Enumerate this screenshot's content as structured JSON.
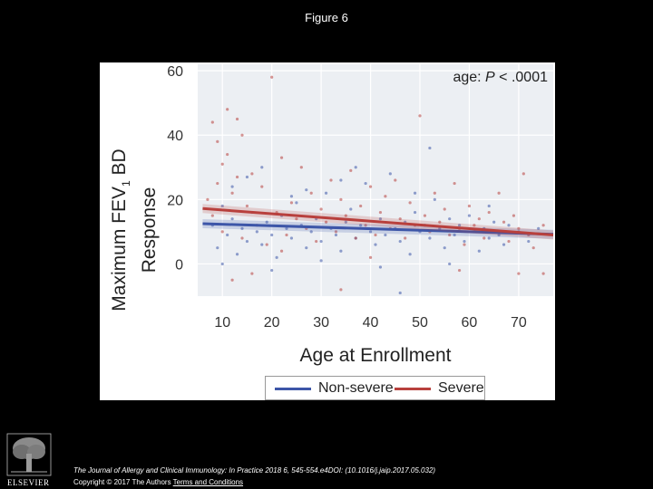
{
  "slide": {
    "title": "Figure 6",
    "citation": "The Journal of Allergy and Clinical Immunology: In Practice 2018 6, 545-554.e4DOI: (10.1016/j.jaip.2017.05.032)",
    "copyright_prefix": "Copyright © 2017 The Authors",
    "terms_link": "Terms and Conditions",
    "publisher_logo_text": "ELSEVIER"
  },
  "colors": {
    "non_severe": "#3d56a8",
    "severe": "#b8403d",
    "plot_background": "#eceff3"
  },
  "chart_data": {
    "type": "scatter",
    "annotation_prefix": "age: ",
    "annotation_p": "P",
    "annotation_suffix": " < .0001",
    "ylabel_line1": "Maximum FEV",
    "ylabel_sub": "1",
    "ylabel_line1_end": " BD",
    "ylabel_line2": "Response",
    "xlabel": "Age at Enrollment",
    "x_ticks": [
      "10",
      "20",
      "30",
      "40",
      "50",
      "60",
      "70"
    ],
    "y_ticks": [
      "0",
      "20",
      "40",
      "60"
    ],
    "xlim": [
      5,
      77
    ],
    "ylim": [
      -10,
      62
    ],
    "grid": true,
    "legend_position": "bottom",
    "series": [
      {
        "name": "Non-severe",
        "fit_line": {
          "x": [
            6,
            77
          ],
          "y": [
            12.5,
            9.2
          ]
        },
        "points": [
          [
            8,
            12
          ],
          [
            9,
            5
          ],
          [
            10,
            18
          ],
          [
            11,
            9
          ],
          [
            12,
            14
          ],
          [
            13,
            3
          ],
          [
            14,
            11
          ],
          [
            15,
            7
          ],
          [
            16,
            16
          ],
          [
            17,
            10
          ],
          [
            18,
            6
          ],
          [
            19,
            13
          ],
          [
            20,
            9
          ],
          [
            21,
            2
          ],
          [
            22,
            15
          ],
          [
            23,
            11
          ],
          [
            24,
            8
          ],
          [
            25,
            19
          ],
          [
            26,
            12
          ],
          [
            27,
            5
          ],
          [
            28,
            10
          ],
          [
            29,
            14
          ],
          [
            30,
            7
          ],
          [
            31,
            22
          ],
          [
            32,
            11
          ],
          [
            33,
            9
          ],
          [
            34,
            4
          ],
          [
            35,
            13
          ],
          [
            36,
            17
          ],
          [
            37,
            8
          ],
          [
            38,
            12
          ],
          [
            39,
            25
          ],
          [
            40,
            10
          ],
          [
            41,
            6
          ],
          [
            42,
            14
          ],
          [
            43,
            9
          ],
          [
            44,
            28
          ],
          [
            45,
            11
          ],
          [
            46,
            7
          ],
          [
            47,
            13
          ],
          [
            48,
            3
          ],
          [
            49,
            16
          ],
          [
            50,
            10
          ],
          [
            51,
            12
          ],
          [
            52,
            8
          ],
          [
            53,
            20
          ],
          [
            54,
            11
          ],
          [
            55,
            5
          ],
          [
            56,
            14
          ],
          [
            57,
            9
          ],
          [
            58,
            12
          ],
          [
            59,
            7
          ],
          [
            60,
            15
          ],
          [
            61,
            10
          ],
          [
            62,
            4
          ],
          [
            63,
            11
          ],
          [
            64,
            8
          ],
          [
            65,
            13
          ],
          [
            66,
            9
          ],
          [
            67,
            6
          ],
          [
            68,
            12
          ],
          [
            70,
            10
          ],
          [
            72,
            7
          ],
          [
            74,
            11
          ],
          [
            12,
            24
          ],
          [
            18,
            30
          ],
          [
            24,
            21
          ],
          [
            34,
            26
          ],
          [
            46,
            -9
          ],
          [
            52,
            36
          ],
          [
            10,
            0
          ],
          [
            20,
            -2
          ],
          [
            30,
            1
          ],
          [
            42,
            -1
          ],
          [
            56,
            0
          ],
          [
            64,
            18
          ],
          [
            37,
            30
          ],
          [
            27,
            23
          ],
          [
            15,
            27
          ],
          [
            49,
            22
          ]
        ]
      },
      {
        "name": "Severe",
        "fit_line": {
          "x": [
            6,
            77
          ],
          "y": [
            17.2,
            9.0
          ]
        },
        "points": [
          [
            7,
            20
          ],
          [
            8,
            15
          ],
          [
            9,
            38
          ],
          [
            10,
            10
          ],
          [
            11,
            48
          ],
          [
            12,
            22
          ],
          [
            13,
            45
          ],
          [
            14,
            8
          ],
          [
            15,
            18
          ],
          [
            16,
            28
          ],
          [
            17,
            12
          ],
          [
            18,
            24
          ],
          [
            19,
            6
          ],
          [
            20,
            58
          ],
          [
            21,
            16
          ],
          [
            22,
            33
          ],
          [
            23,
            9
          ],
          [
            24,
            19
          ],
          [
            25,
            14
          ],
          [
            26,
            30
          ],
          [
            27,
            11
          ],
          [
            28,
            22
          ],
          [
            29,
            7
          ],
          [
            30,
            17
          ],
          [
            31,
            13
          ],
          [
            32,
            26
          ],
          [
            33,
            10
          ],
          [
            34,
            20
          ],
          [
            35,
            15
          ],
          [
            36,
            29
          ],
          [
            37,
            8
          ],
          [
            38,
            18
          ],
          [
            39,
            12
          ],
          [
            40,
            24
          ],
          [
            41,
            9
          ],
          [
            42,
            16
          ],
          [
            43,
            21
          ],
          [
            44,
            11
          ],
          [
            45,
            26
          ],
          [
            46,
            14
          ],
          [
            47,
            8
          ],
          [
            48,
            19
          ],
          [
            49,
            12
          ],
          [
            50,
            46
          ],
          [
            51,
            15
          ],
          [
            52,
            10
          ],
          [
            53,
            22
          ],
          [
            54,
            13
          ],
          [
            55,
            17
          ],
          [
            56,
            9
          ],
          [
            57,
            25
          ],
          [
            58,
            11
          ],
          [
            59,
            6
          ],
          [
            60,
            18
          ],
          [
            61,
            12
          ],
          [
            62,
            14
          ],
          [
            63,
            8
          ],
          [
            64,
            16
          ],
          [
            65,
            10
          ],
          [
            66,
            22
          ],
          [
            67,
            13
          ],
          [
            68,
            7
          ],
          [
            69,
            15
          ],
          [
            70,
            11
          ],
          [
            71,
            28
          ],
          [
            72,
            9
          ],
          [
            73,
            5
          ],
          [
            75,
            12
          ],
          [
            8,
            44
          ],
          [
            10,
            31
          ],
          [
            12,
            -5
          ],
          [
            14,
            40
          ],
          [
            16,
            -3
          ],
          [
            9,
            25
          ],
          [
            11,
            34
          ],
          [
            13,
            27
          ],
          [
            70,
            -3
          ],
          [
            75,
            -3
          ],
          [
            58,
            -2
          ],
          [
            40,
            2
          ],
          [
            22,
            4
          ],
          [
            34,
            -8
          ]
        ]
      }
    ]
  }
}
